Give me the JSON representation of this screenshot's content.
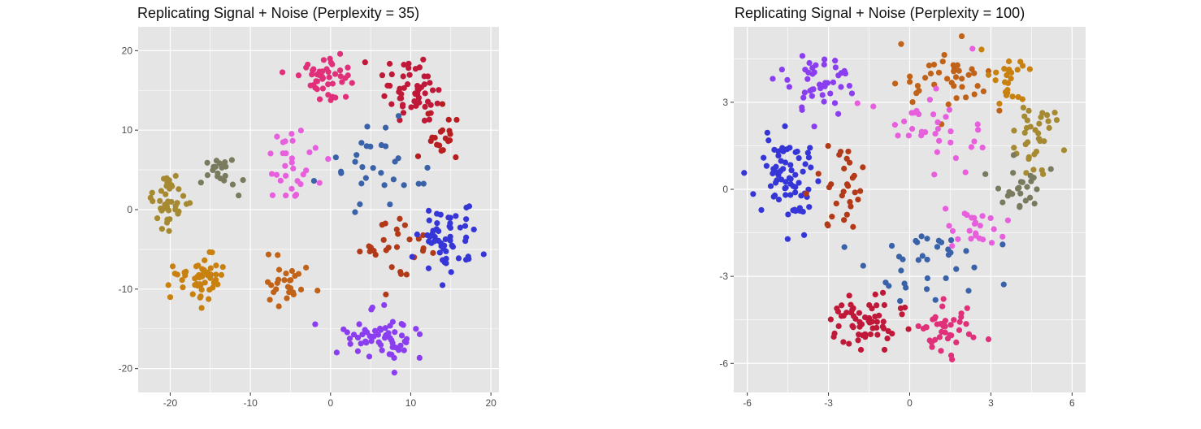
{
  "colors": {
    "panel": "#e5e5e5",
    "grid": "#ffffff",
    "tick": "#333333",
    "tick_label": "#4d4d4d"
  },
  "chart_data": [
    {
      "type": "scatter",
      "title": "Replicating Signal + Noise (Perplexity = 35)",
      "xlabel": "",
      "ylabel": "",
      "xlim": [
        -24,
        21
      ],
      "ylim": [
        -23,
        23
      ],
      "xticks": [
        -20,
        -10,
        0,
        10,
        20
      ],
      "yticks": [
        -20,
        -10,
        0,
        10,
        20
      ],
      "grid": true,
      "legend": "none",
      "seed": 35,
      "groups": [
        {
          "color": "#e0307a",
          "center": [
            -0.5,
            16.5
          ],
          "spread": [
            3.2,
            2.4
          ],
          "n": 45
        },
        {
          "color": "#c01838",
          "center": [
            10.0,
            15.0
          ],
          "spread": [
            3.5,
            3.5
          ],
          "n": 55
        },
        {
          "color": "#b81e20",
          "center": [
            14.0,
            9.0
          ],
          "spread": [
            2.0,
            3.0
          ],
          "n": 20
        },
        {
          "color": "#e85fde",
          "center": [
            -5.0,
            5.0
          ],
          "spread": [
            3.2,
            4.5
          ],
          "n": 30
        },
        {
          "color": "#7a7a5e",
          "center": [
            -14.0,
            5.0
          ],
          "spread": [
            3.2,
            2.2
          ],
          "n": 22
        },
        {
          "color": "#a68a32",
          "center": [
            -20.0,
            1.0
          ],
          "spread": [
            2.0,
            3.0
          ],
          "n": 40
        },
        {
          "color": "#c8800f",
          "center": [
            -16.5,
            -9.0
          ],
          "spread": [
            3.0,
            3.0
          ],
          "n": 50
        },
        {
          "color": "#c06218",
          "center": [
            -5.5,
            -9.5
          ],
          "spread": [
            3.5,
            2.5
          ],
          "n": 28
        },
        {
          "color": "#b33a18",
          "center": [
            8.5,
            -5.0
          ],
          "spread": [
            4.0,
            3.5
          ],
          "n": 28
        },
        {
          "color": "#3a62a8",
          "center": [
            5.0,
            5.0
          ],
          "spread": [
            6.0,
            5.0
          ],
          "n": 30
        },
        {
          "color": "#3636d8",
          "center": [
            14.5,
            -4.0
          ],
          "spread": [
            3.5,
            4.0
          ],
          "n": 55
        },
        {
          "color": "#8a3ef0",
          "center": [
            6.0,
            -16.0
          ],
          "spread": [
            5.0,
            2.5
          ],
          "n": 60
        }
      ]
    },
    {
      "type": "scatter",
      "title": "Replicating Signal + Noise (Perplexity = 100)",
      "xlabel": "",
      "ylabel": "",
      "xlim": [
        -6.5,
        6.5
      ],
      "ylim": [
        -7,
        5.6
      ],
      "xticks": [
        -6,
        -3,
        0,
        3,
        6
      ],
      "yticks": [
        -6,
        -3,
        0,
        3
      ],
      "grid": true,
      "legend": "none",
      "seed": 100,
      "groups": [
        {
          "color": "#8a3ef0",
          "center": [
            -3.2,
            3.6
          ],
          "spread": [
            1.4,
            0.9
          ],
          "n": 45
        },
        {
          "color": "#3636d8",
          "center": [
            -4.5,
            0.2
          ],
          "spread": [
            0.9,
            1.6
          ],
          "n": 70
        },
        {
          "color": "#c06218",
          "center": [
            1.5,
            3.8
          ],
          "spread": [
            1.4,
            1.0
          ],
          "n": 40
        },
        {
          "color": "#c8800f",
          "center": [
            3.8,
            3.8
          ],
          "spread": [
            0.9,
            0.9
          ],
          "n": 25
        },
        {
          "color": "#a68a32",
          "center": [
            4.8,
            1.8
          ],
          "spread": [
            0.8,
            1.2
          ],
          "n": 35
        },
        {
          "color": "#7a7a5e",
          "center": [
            4.0,
            0.0
          ],
          "spread": [
            1.0,
            0.8
          ],
          "n": 25
        },
        {
          "color": "#e85fde",
          "center": [
            1.0,
            2.0
          ],
          "spread": [
            1.8,
            1.5
          ],
          "n": 35
        },
        {
          "color": "#b33a18",
          "center": [
            -2.6,
            0.3
          ],
          "spread": [
            1.0,
            1.2
          ],
          "n": 30
        },
        {
          "color": "#3a62a8",
          "center": [
            0.5,
            -2.5
          ],
          "spread": [
            2.2,
            1.3
          ],
          "n": 35
        },
        {
          "color": "#e85fde",
          "center": [
            2.6,
            -1.4
          ],
          "spread": [
            1.0,
            0.9
          ],
          "n": 25
        },
        {
          "color": "#c01838",
          "center": [
            -1.7,
            -4.6
          ],
          "spread": [
            1.3,
            0.8
          ],
          "n": 60
        },
        {
          "color": "#e0307a",
          "center": [
            1.5,
            -4.8
          ],
          "spread": [
            1.1,
            0.8
          ],
          "n": 40
        }
      ]
    }
  ]
}
